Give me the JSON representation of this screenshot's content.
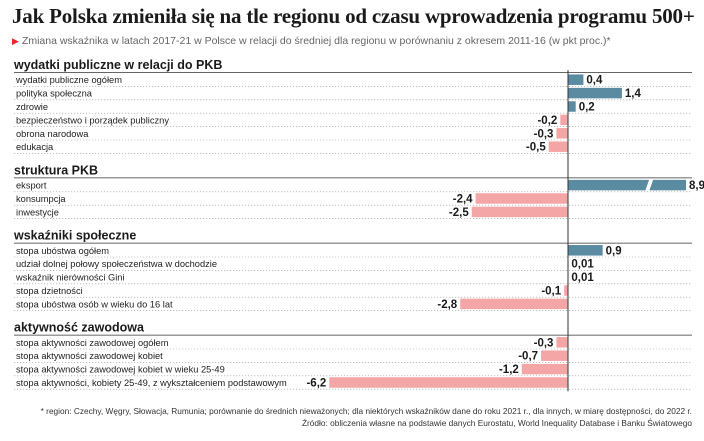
{
  "title": "Jak Polska zmieniła się na tle regionu od czasu wprowadzenia programu 500+",
  "subtitle": "Zmiana wskaźnika w latach 2017-21 w Polsce w relacji do średniej dla regionu w porównaniu z okresem 2011-16 (w pkt proc.)*",
  "footnote": "* region: Czechy, Węgry, Słowacja, Rumunia; porównanie do średnich nieważonych; dla niektórych wskaźników dane do roku 2021 r., dla innych, w miarę dostępności, do 2022 r.",
  "source": "Źródło: obliczenia własne na podstawie danych Eurostatu, World Inequality Database i Banku Światowego",
  "colors": {
    "positive": "#5b8ba1",
    "negative": "#f4a6a6",
    "marker": "#e8262b"
  },
  "chart_data": {
    "type": "bar",
    "orientation": "horizontal",
    "groups": [
      {
        "name": "wydatki publiczne w relacji do PKB",
        "items": [
          {
            "label": "wydatki publiczne ogółem",
            "value": 0.4,
            "value_label": "0,4"
          },
          {
            "label": "polityka społeczna",
            "value": 1.4,
            "value_label": "1,4"
          },
          {
            "label": "zdrowie",
            "value": 0.2,
            "value_label": "0,2"
          },
          {
            "label": "bezpieczeństwo i porządek publiczny",
            "value": -0.2,
            "value_label": "-0,2"
          },
          {
            "label": "obrona narodowa",
            "value": -0.3,
            "value_label": "-0,3"
          },
          {
            "label": "edukacja",
            "value": -0.5,
            "value_label": "-0,5"
          }
        ]
      },
      {
        "name": "struktura PKB",
        "items": [
          {
            "label": "eksport",
            "value": 8.9,
            "value_label": "8,9",
            "axis_break": true
          },
          {
            "label": "konsumpcja",
            "value": -2.4,
            "value_label": "-2,4"
          },
          {
            "label": "inwestycje",
            "value": -2.5,
            "value_label": "-2,5"
          }
        ]
      },
      {
        "name": "wskaźniki społeczne",
        "items": [
          {
            "label": "stopa ubóstwa ogółem",
            "value": 0.9,
            "value_label": "0,9"
          },
          {
            "label": "udział dolnej połowy społeczeństwa w dochodzie",
            "value": 0.01,
            "value_label": "0,01"
          },
          {
            "label": "wskaźnik nierówności Gini",
            "value": 0.01,
            "value_label": "0,01"
          },
          {
            "label": "stopa dzietności",
            "value": -0.1,
            "value_label": "-0,1"
          },
          {
            "label": "stopa ubóstwa osób w wieku do 16 lat",
            "value": -2.8,
            "value_label": "-2,8"
          }
        ]
      },
      {
        "name": "aktywność zawodowa",
        "items": [
          {
            "label": "stopa aktywności zawodowej ogółem",
            "value": -0.3,
            "value_label": "-0,3"
          },
          {
            "label": "stopa aktywności zawodowej kobiet",
            "value": -0.7,
            "value_label": "-0,7"
          },
          {
            "label": "stopa aktywności zawodowej kobiet w wieku 25-49",
            "value": -1.2,
            "value_label": "-1,2"
          },
          {
            "label": "stopa aktywności, kobiety 25-49, z wykształceniem podstawowym",
            "value": -6.2,
            "value_label": "-6,2"
          }
        ]
      }
    ]
  }
}
